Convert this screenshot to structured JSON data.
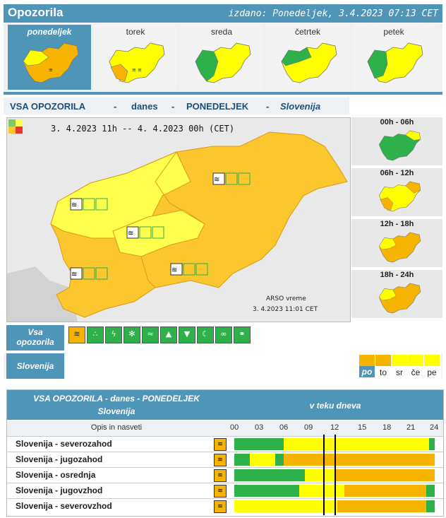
{
  "header": {
    "title": "Opozorila",
    "issued": "izdano: Ponedeljek, 3.4.2023 07:13 CET"
  },
  "days": [
    {
      "label": "ponedeljek",
      "active": true
    },
    {
      "label": "torek",
      "active": false
    },
    {
      "label": "sreda",
      "active": false
    },
    {
      "label": "četrtek",
      "active": false
    },
    {
      "label": "petek",
      "active": false
    }
  ],
  "section_title": {
    "a": "VSA OPOZORILA",
    "d1": "-",
    "b": "danes",
    "d2": "-",
    "c": "PONEDELJEK",
    "d3": "-",
    "e": "Slovenija"
  },
  "map": {
    "period": "3. 4.2023  11h  --  4. 4.2023  00h   (CET)",
    "credit": "ARSO vreme",
    "credit_time": "3. 4.2023  11:01 CET"
  },
  "periods": [
    "00h - 06h",
    "06h - 12h",
    "12h - 18h",
    "18h - 24h"
  ],
  "type_bar": {
    "label_line1": "Vsa",
    "label_line2": "opozorila",
    "icons": [
      "wind-icon",
      "rain-icon",
      "thunder-icon",
      "snow-icon",
      "fog-icon",
      "heat-icon",
      "cold-icon",
      "fire-icon",
      "coastal-icon",
      "avalanche-icon"
    ]
  },
  "region_bar": {
    "label": "Slovenija",
    "day_abbr": [
      "po",
      "to",
      "sr",
      "če",
      "pe"
    ]
  },
  "table": {
    "title_line1": "VSA OPOZORILA - danes - PONEDELJEK",
    "title_line2": "Slovenija",
    "right_title": "v teku dneva",
    "col_header": "Opis in nasveti",
    "hours": [
      "00",
      "03",
      "06",
      "09",
      "12",
      "15",
      "18",
      "21",
      "24"
    ],
    "rows": [
      {
        "name": "Slovenija - severozahod"
      },
      {
        "name": "Slovenija - jugozahod"
      },
      {
        "name": "Slovenija - osrednja"
      },
      {
        "name": "Slovenija - jugovzhod"
      },
      {
        "name": "Slovenija - severovzhod"
      }
    ]
  },
  "colors": {
    "accent": "#4f95b8",
    "green": "#2eb04a",
    "yellow": "#ffff00",
    "orange": "#f6b400",
    "red": "#e8372e"
  }
}
